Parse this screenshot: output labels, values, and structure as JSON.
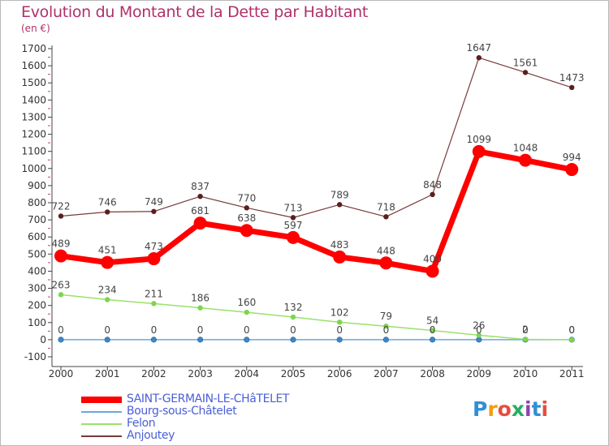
{
  "header": {
    "title": "Evolution du Montant de la Dette par Habitant",
    "unit": "(en €)"
  },
  "logo": {
    "text": "Proxiti",
    "letters": [
      "P",
      "r",
      "o",
      "x",
      "i",
      "t",
      "i"
    ],
    "colors": [
      "#2f8fd6",
      "#f39c12",
      "#e74c3c",
      "#27ae60",
      "#8e44ad",
      "#2f8fd6",
      "#e74c3c"
    ]
  },
  "chart_data": {
    "type": "line",
    "title": "Evolution du Montant de la Dette par Habitant",
    "subtitle": "(en €)",
    "x": [
      "2000",
      "2001",
      "2002",
      "2003",
      "2004",
      "2005",
      "2006",
      "2007",
      "2008",
      "2009",
      "2010",
      "2011"
    ],
    "ylim": [
      -100,
      1700
    ],
    "yticks": [
      -100,
      0,
      100,
      200,
      300,
      400,
      500,
      600,
      700,
      800,
      900,
      1000,
      1100,
      1200,
      1300,
      1400,
      1500,
      1600,
      1700
    ],
    "grid": false,
    "legend_position": "bottom-left",
    "series": [
      {
        "name": "SAINT-GERMAIN-LE-CHâTELET",
        "color": "#ff0000",
        "width": 7,
        "marker": 8,
        "values": [
          489,
          451,
          473,
          681,
          638,
          597,
          483,
          448,
          400,
          1099,
          1048,
          994
        ],
        "labels": [
          "489",
          "451",
          "473",
          "681",
          "638",
          "597",
          "483",
          "448",
          "400",
          "1099",
          "1048",
          "994"
        ]
      },
      {
        "name": "Bourg-sous-Châtelet",
        "color": "#6fa8d6",
        "width": 1.5,
        "marker": 3.2,
        "values": [
          0,
          0,
          0,
          0,
          0,
          0,
          0,
          0,
          0,
          0,
          0,
          0
        ],
        "labels": [
          "0",
          "0",
          "0",
          "0",
          "0",
          "0",
          "0",
          "0",
          "0",
          "0",
          "0",
          "0"
        ]
      },
      {
        "name": "Felon",
        "color": "#99e26b",
        "width": 1.5,
        "marker": 3.2,
        "values": [
          263,
          234,
          211,
          186,
          160,
          132,
          102,
          79,
          54,
          26,
          2,
          0
        ],
        "labels": [
          "263",
          "234",
          "211",
          "186",
          "160",
          "132",
          "102",
          "79",
          "54",
          "26",
          "2",
          "0"
        ]
      },
      {
        "name": "Anjoutey",
        "color": "#7a3a3a",
        "width": 1.2,
        "marker": 3.2,
        "values": [
          722,
          746,
          749,
          837,
          770,
          713,
          789,
          718,
          848,
          1647,
          1561,
          1473
        ],
        "labels": [
          "722",
          "746",
          "749",
          "837",
          "770",
          "713",
          "789",
          "718",
          "848",
          "1647",
          "1561",
          "1473"
        ]
      }
    ]
  }
}
